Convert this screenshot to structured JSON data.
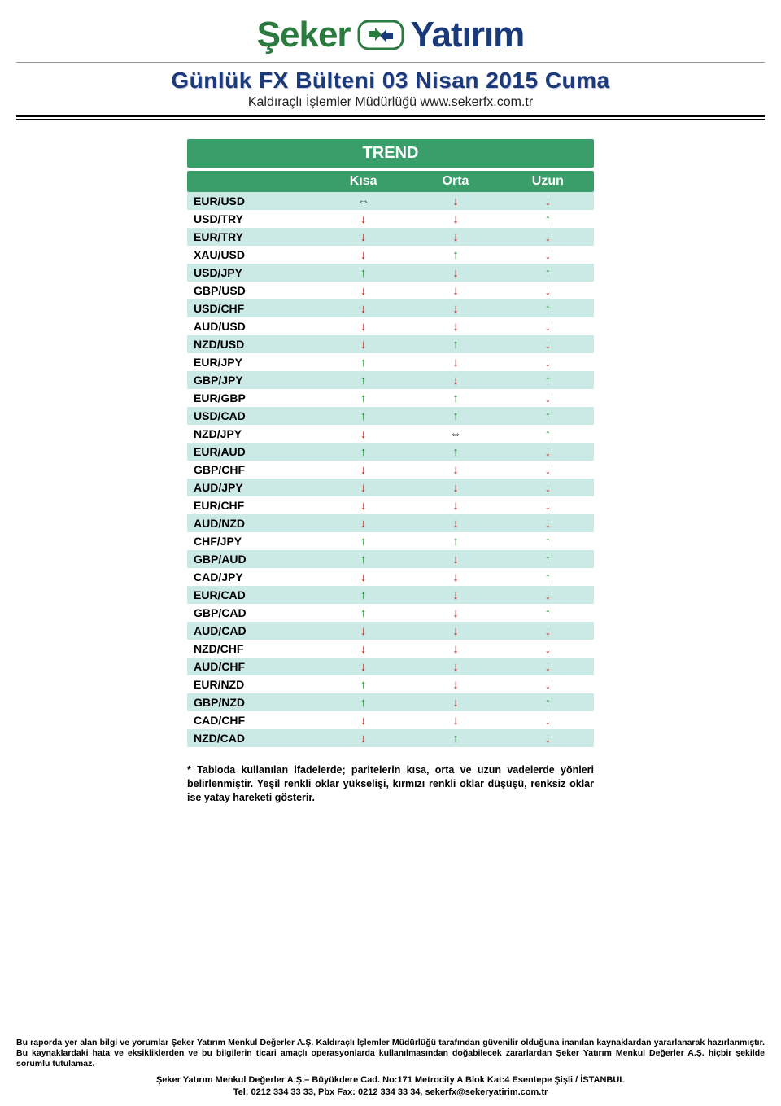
{
  "logo": {
    "left": "Şeker",
    "right": "Yatırım"
  },
  "title": "Günlük FX Bülteni  03 Nisan 2015 Cuma",
  "subtitle": "Kaldıraçlı İşlemler Müdürlüğü www.sekerfx.com.tr",
  "trend": {
    "header": "TREND",
    "col_blank": "",
    "col_kisa": "Kısa",
    "col_orta": "Orta",
    "col_uzun": "Uzun",
    "glyphs": {
      "up": "↑",
      "down": "↓",
      "flat": "⇔"
    },
    "colors": {
      "header_bg": "#3a9e6b",
      "alt_row_bg": "#cbe9e5",
      "up": "#1a8a2e",
      "down": "#b01818",
      "flat": "#333333"
    },
    "rows": [
      {
        "pair": "EUR/USD",
        "k": "flat",
        "o": "down",
        "u": "down"
      },
      {
        "pair": "USD/TRY",
        "k": "down",
        "o": "down",
        "u": "up"
      },
      {
        "pair": "EUR/TRY",
        "k": "down",
        "o": "down",
        "u": "down"
      },
      {
        "pair": "XAU/USD",
        "k": "down",
        "o": "up",
        "u": "down"
      },
      {
        "pair": "USD/JPY",
        "k": "up",
        "o": "down",
        "u": "up"
      },
      {
        "pair": "GBP/USD",
        "k": "down",
        "o": "down",
        "u": "down"
      },
      {
        "pair": "USD/CHF",
        "k": "down",
        "o": "down",
        "u": "up"
      },
      {
        "pair": "AUD/USD",
        "k": "down",
        "o": "down",
        "u": "down"
      },
      {
        "pair": "NZD/USD",
        "k": "down",
        "o": "up",
        "u": "down"
      },
      {
        "pair": "EUR/JPY",
        "k": "up",
        "o": "down",
        "u": "down"
      },
      {
        "pair": "GBP/JPY",
        "k": "up",
        "o": "down",
        "u": "up"
      },
      {
        "pair": "EUR/GBP",
        "k": "up",
        "o": "up",
        "u": "down"
      },
      {
        "pair": "USD/CAD",
        "k": "up",
        "o": "up",
        "u": "up"
      },
      {
        "pair": "NZD/JPY",
        "k": "down",
        "o": "flat",
        "u": "up"
      },
      {
        "pair": "EUR/AUD",
        "k": "up",
        "o": "up",
        "u": "down"
      },
      {
        "pair": "GBP/CHF",
        "k": "down",
        "o": "down",
        "u": "down"
      },
      {
        "pair": "AUD/JPY",
        "k": "down",
        "o": "down",
        "u": "down"
      },
      {
        "pair": "EUR/CHF",
        "k": "down",
        "o": "down",
        "u": "down"
      },
      {
        "pair": "AUD/NZD",
        "k": "down",
        "o": "down",
        "u": "down"
      },
      {
        "pair": "CHF/JPY",
        "k": "up",
        "o": "up",
        "u": "up"
      },
      {
        "pair": "GBP/AUD",
        "k": "up",
        "o": "down",
        "u": "up"
      },
      {
        "pair": "CAD/JPY",
        "k": "down",
        "o": "down",
        "u": "up"
      },
      {
        "pair": "EUR/CAD",
        "k": "up",
        "o": "down",
        "u": "down"
      },
      {
        "pair": "GBP/CAD",
        "k": "up",
        "o": "down",
        "u": "up"
      },
      {
        "pair": "AUD/CAD",
        "k": "down",
        "o": "down",
        "u": "down"
      },
      {
        "pair": "NZD/CHF",
        "k": "down",
        "o": "down",
        "u": "down"
      },
      {
        "pair": "AUD/CHF",
        "k": "down",
        "o": "down",
        "u": "down"
      },
      {
        "pair": "EUR/NZD",
        "k": "up",
        "o": "down",
        "u": "down"
      },
      {
        "pair": "GBP/NZD",
        "k": "up",
        "o": "down",
        "u": "up"
      },
      {
        "pair": "CAD/CHF",
        "k": "down",
        "o": "down",
        "u": "down"
      },
      {
        "pair": "NZD/CAD",
        "k": "down",
        "o": "up",
        "u": "down"
      }
    ]
  },
  "footnote": "* Tabloda kullanılan ifadelerde; paritelerin kısa, orta ve uzun vadelerde yönleri belirlenmiştir. Yeşil renkli oklar yükselişi, kırmızı renkli oklar düşüşü, renksiz oklar ise yatay hareketi gösterir.",
  "disclaimer": "Bu raporda yer alan bilgi ve yorumlar Şeker Yatırım Menkul Değerler A.Ş. Kaldıraçlı İşlemler Müdürlüğü tarafından güvenilir olduğuna inanılan kaynaklardan yararlanarak hazırlanmıştır. Bu kaynaklardaki hata ve eksikliklerden ve bu bilgilerin ticari amaçlı operasyonlarda kullanılmasından doğabilecek zararlardan Şeker Yatırım Menkul Değerler A.Ş. hiçbir şekilde sorumlu tutulamaz.",
  "company_line1": "Şeker Yatırım Menkul Değerler A.Ş.– Büyükdere Cad. No:171 Metrocity A Blok Kat:4 Esentepe Şişli / İSTANBUL",
  "company_line2": "Tel: 0212 334 33 33, Pbx Fax: 0212 334 33 34, sekerfx@sekeryatirim.com.tr"
}
